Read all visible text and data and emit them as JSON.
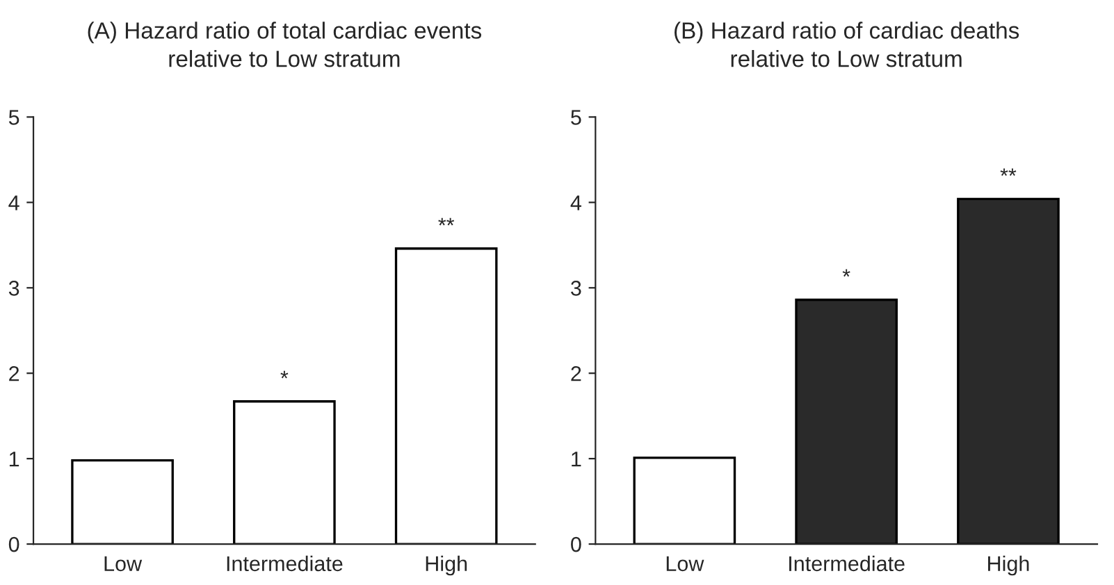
{
  "chart_data": [
    {
      "type": "bar",
      "title": "(A) Hazard ratio of total cardiac events\nrelative to Low stratum",
      "categories": [
        "Low",
        "Intermediate",
        "High"
      ],
      "values": [
        0.98,
        1.67,
        3.46
      ],
      "colors": [
        "#ffffff",
        "#ffffff",
        "#ffffff"
      ],
      "ylim": [
        0,
        5
      ],
      "yticks": [
        0,
        1,
        2,
        3,
        4,
        5
      ],
      "grid": false,
      "annotations": [
        {
          "text": "*",
          "x": "Intermediate",
          "y": 1.67
        },
        {
          "text": "**",
          "x": "High",
          "y": 3.46
        }
      ]
    },
    {
      "type": "bar",
      "title": "(B) Hazard ratio of cardiac deaths\nrelative to Low stratum",
      "categories": [
        "Low",
        "Intermediate",
        "High"
      ],
      "values": [
        1.01,
        2.86,
        4.04
      ],
      "colors": [
        "#ffffff",
        "#2a2a2a",
        "#2a2a2a"
      ],
      "ylim": [
        0,
        5
      ],
      "yticks": [
        0,
        1,
        2,
        3,
        4,
        5
      ],
      "grid": false,
      "annotations": [
        {
          "text": "*",
          "x": "Intermediate",
          "y": 2.86
        },
        {
          "text": "**",
          "x": "High",
          "y": 4.04
        }
      ]
    }
  ]
}
